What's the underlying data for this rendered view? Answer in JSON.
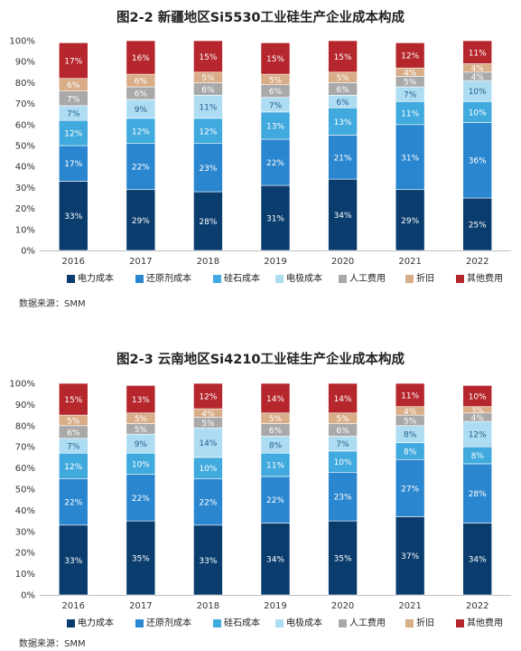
{
  "legend_labels": [
    "电力成本",
    "还原剂成本",
    "硅石成本",
    "电极成本",
    "人工费用",
    "折旧",
    "其他费用"
  ],
  "series_colors": [
    "#0a3d6e",
    "#2a86cf",
    "#40a9dd",
    "#aedcf2",
    "#a9a9a9",
    "#d9ad88",
    "#b5272d"
  ],
  "chart_data": [
    {
      "type": "bar",
      "stacked": true,
      "title": "图2-2 新疆地区Si5530工业硅生产企业成本构成",
      "source": "数据来源：SMM",
      "categories": [
        "2016",
        "2017",
        "2018",
        "2019",
        "2020",
        "2021",
        "2022"
      ],
      "y_ticks": [
        "0%",
        "10%",
        "20%",
        "30%",
        "40%",
        "50%",
        "60%",
        "70%",
        "80%",
        "90%",
        "100%"
      ],
      "ylim": [
        0,
        100
      ],
      "series": [
        {
          "name": "电力成本",
          "values": [
            33,
            29,
            28,
            31,
            34,
            29,
            25
          ]
        },
        {
          "name": "还原剂成本",
          "values": [
            17,
            22,
            23,
            22,
            21,
            31,
            36
          ]
        },
        {
          "name": "硅石成本",
          "values": [
            12,
            12,
            12,
            13,
            13,
            11,
            10
          ]
        },
        {
          "name": "电极成本",
          "values": [
            7,
            9,
            11,
            7,
            6,
            7,
            10
          ]
        },
        {
          "name": "人工费用",
          "values": [
            7,
            6,
            6,
            6,
            6,
            5,
            4
          ]
        },
        {
          "name": "折旧",
          "values": [
            6,
            6,
            5,
            5,
            5,
            4,
            4
          ]
        },
        {
          "name": "其他费用",
          "values": [
            17,
            16,
            15,
            15,
            15,
            12,
            11
          ]
        }
      ]
    },
    {
      "type": "bar",
      "stacked": true,
      "title": "图2-3 云南地区Si4210工业硅生产企业成本构成",
      "source": "数据来源：SMM",
      "categories": [
        "2016",
        "2017",
        "2018",
        "2019",
        "2020",
        "2021",
        "2022"
      ],
      "y_ticks": [
        "0%",
        "10%",
        "20%",
        "30%",
        "40%",
        "50%",
        "60%",
        "70%",
        "80%",
        "90%",
        "100%"
      ],
      "ylim": [
        0,
        100
      ],
      "series": [
        {
          "name": "电力成本",
          "values": [
            33,
            35,
            33,
            34,
            35,
            37,
            34
          ]
        },
        {
          "name": "还原剂成本",
          "values": [
            22,
            22,
            22,
            22,
            23,
            27,
            28
          ]
        },
        {
          "name": "硅石成本",
          "values": [
            12,
            10,
            10,
            11,
            10,
            8,
            8
          ]
        },
        {
          "name": "电极成本",
          "values": [
            7,
            9,
            14,
            8,
            7,
            8,
            12
          ]
        },
        {
          "name": "人工费用",
          "values": [
            6,
            5,
            5,
            6,
            6,
            5,
            4
          ]
        },
        {
          "name": "折旧",
          "values": [
            5,
            5,
            4,
            5,
            5,
            4,
            3
          ]
        },
        {
          "name": "其他费用",
          "values": [
            15,
            13,
            12,
            14,
            14,
            11,
            10
          ]
        }
      ]
    }
  ]
}
